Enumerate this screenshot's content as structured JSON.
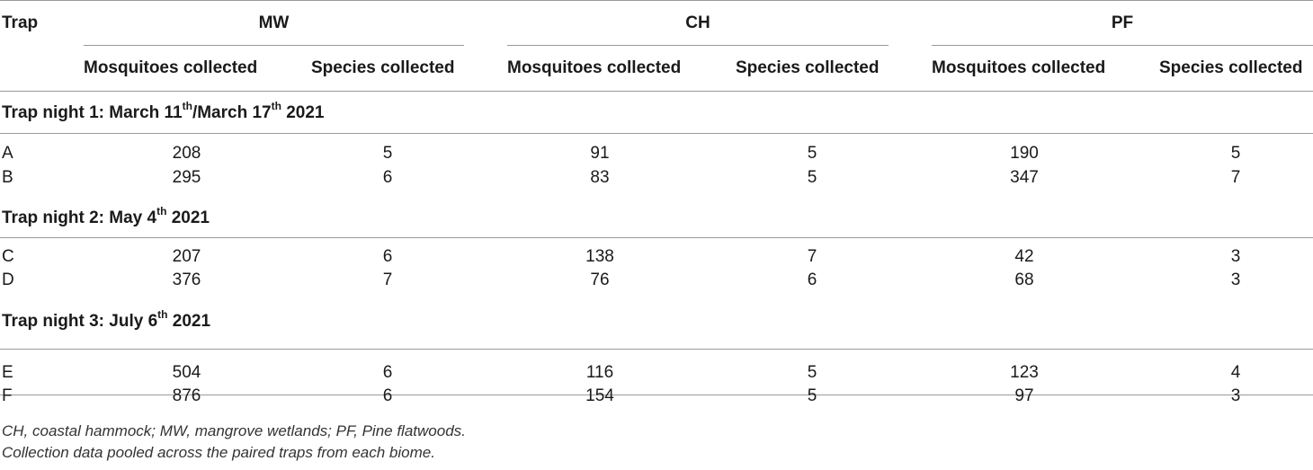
{
  "header": {
    "trap_label": "Trap",
    "biomes": [
      "MW",
      "CH",
      "PF"
    ],
    "sub_mosquitoes": "Mosquitoes collected",
    "sub_species": "Species collected"
  },
  "groups": [
    {
      "title_pre": "Trap night 1: March 11",
      "title_sup1": "th",
      "title_mid": "/March 17",
      "title_sup2": "th",
      "title_post": " 2021",
      "rows": [
        {
          "trap": "A",
          "mw_m": "208",
          "mw_s": "5",
          "ch_m": "91",
          "ch_s": "5",
          "pf_m": "190",
          "pf_s": "5"
        },
        {
          "trap": "B",
          "mw_m": "295",
          "mw_s": "6",
          "ch_m": "83",
          "ch_s": "5",
          "pf_m": "347",
          "pf_s": "7"
        }
      ]
    },
    {
      "title_pre": "Trap night 2: May 4",
      "title_sup1": "th",
      "title_post": " 2021",
      "rows": [
        {
          "trap": "C",
          "mw_m": "207",
          "mw_s": "6",
          "ch_m": "138",
          "ch_s": "7",
          "pf_m": "42",
          "pf_s": "3"
        },
        {
          "trap": "D",
          "mw_m": "376",
          "mw_s": "7",
          "ch_m": "76",
          "ch_s": "6",
          "pf_m": "68",
          "pf_s": "3"
        }
      ]
    },
    {
      "title_pre": "Trap night 3: July 6",
      "title_sup1": "th",
      "title_post": " 2021",
      "rows": [
        {
          "trap": "E",
          "mw_m": "504",
          "mw_s": "6",
          "ch_m": "116",
          "ch_s": "5",
          "pf_m": "123",
          "pf_s": "4"
        },
        {
          "trap": "F",
          "mw_m": "876",
          "mw_s": "6",
          "ch_m": "154",
          "ch_s": "5",
          "pf_m": "97",
          "pf_s": "3"
        }
      ]
    }
  ],
  "footnotes": [
    "CH, coastal hammock; MW, mangrove wetlands; PF, Pine flatwoods.",
    "Collection data pooled across the paired traps from each biome."
  ]
}
